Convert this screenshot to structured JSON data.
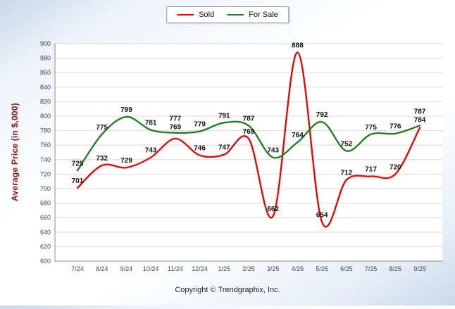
{
  "legend": {
    "items": [
      {
        "label": "Sold",
        "color": "#e60000"
      },
      {
        "label": "For Sale",
        "color": "#1e7b1e"
      }
    ]
  },
  "footer": {
    "copyright": "Copyright © Trendgraphix, Inc."
  },
  "chart_data": {
    "type": "line",
    "title": "",
    "xlabel": "",
    "ylabel": "Average Price (in $,000)",
    "categories": [
      "7/24",
      "8/24",
      "9/24",
      "10/24",
      "11/24",
      "12/24",
      "1/25",
      "2/25",
      "3/25",
      "4/25",
      "5/25",
      "6/25",
      "7/25",
      "8/25",
      "9/25"
    ],
    "series": [
      {
        "name": "Sold",
        "color": "#e60000",
        "values": [
          701,
          732,
          729,
          743,
          769,
          746,
          747,
          769,
          662,
          888,
          654,
          712,
          717,
          720,
          784
        ]
      },
      {
        "name": "For Sale",
        "color": "#1e7b1e",
        "values": [
          725,
          775,
          799,
          781,
          777,
          779,
          791,
          787,
          743,
          764,
          792,
          752,
          775,
          776,
          787
        ]
      }
    ],
    "ylim": [
      600,
      900
    ],
    "ytick_step": 20,
    "grid": true,
    "legend_position": "top-center",
    "smooth": true
  }
}
